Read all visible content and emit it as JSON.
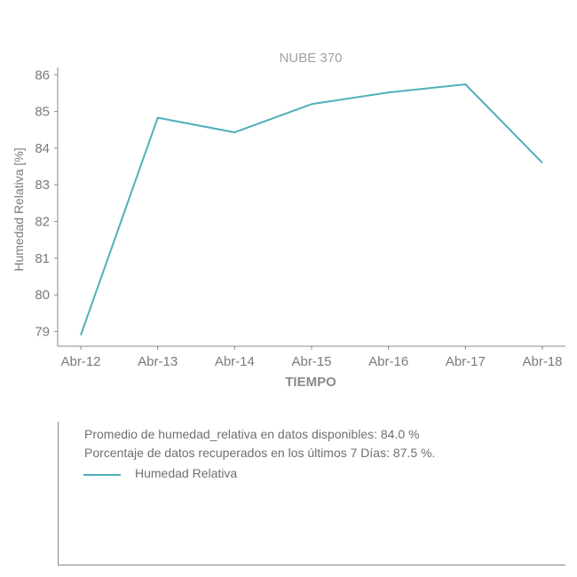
{
  "chart_data": {
    "type": "line",
    "title": "NUBE 370",
    "xlabel": "TIEMPO",
    "ylabel": "Humedad Relativa [%]",
    "categories": [
      "Abr-12",
      "Abr-13",
      "Abr-14",
      "Abr-15",
      "Abr-16",
      "Abr-17",
      "Abr-18"
    ],
    "series": [
      {
        "name": "Humedad Relativa",
        "values": [
          78.9,
          84.83,
          84.43,
          85.2,
          85.52,
          85.74,
          83.6
        ]
      }
    ],
    "ylim": [
      78.6,
      86.2
    ],
    "yticks": [
      79,
      80,
      81,
      82,
      83,
      84,
      85,
      86
    ],
    "grid": false,
    "legend_position": "below-chart"
  },
  "info": {
    "line1": "Promedio de humedad_relativa en datos disponibles: 84.0 %",
    "line2": "Porcentaje de datos recuperados en los últimos 7 Días: 87.5 %."
  },
  "colors": {
    "series": "#4fb0b9",
    "axis": "#8a8a8a",
    "text": "#7a7a7a",
    "title": "#a0a0a0"
  }
}
